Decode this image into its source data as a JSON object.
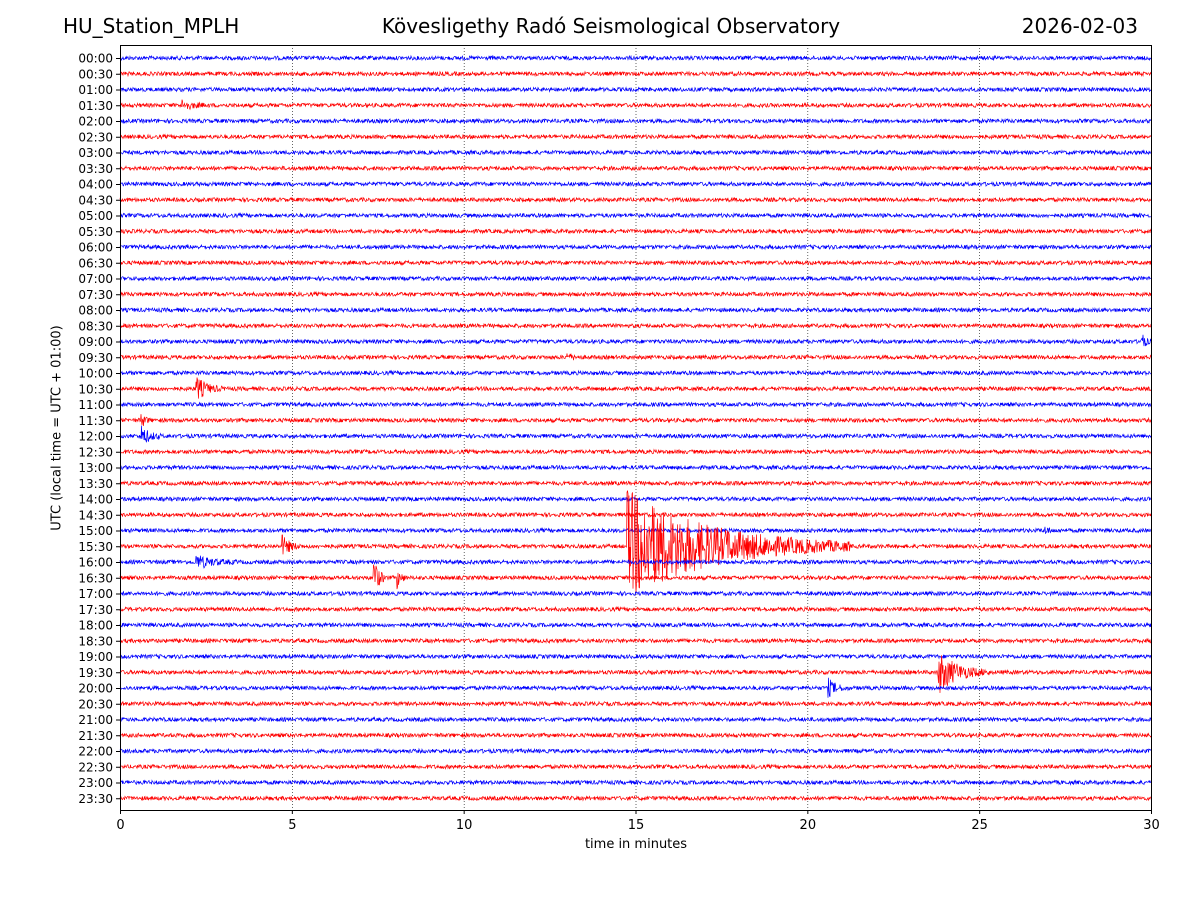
{
  "header": {
    "station": "HU_Station_MPLH",
    "observatory": "Kövesligethy Radó Seismological Observatory",
    "date": "2026-02-03"
  },
  "chart_data": {
    "type": "line",
    "title": "Kövesligethy Radó Seismological Observatory",
    "xlabel": "time in minutes",
    "ylabel": "UTC (local time = UTC + 01:00)",
    "xlim": [
      0,
      30
    ],
    "xticks": [
      0,
      5,
      10,
      15,
      20,
      25,
      30
    ],
    "grid": "vertical dotted at 5-minute intervals",
    "trace_colors": [
      "#0000ff",
      "#ff0000"
    ],
    "rows": [
      "00:00",
      "00:30",
      "01:00",
      "01:30",
      "02:00",
      "02:30",
      "03:00",
      "03:30",
      "04:00",
      "04:30",
      "05:00",
      "05:30",
      "06:00",
      "06:30",
      "07:00",
      "07:30",
      "08:00",
      "08:30",
      "09:00",
      "09:30",
      "10:00",
      "10:30",
      "11:00",
      "11:30",
      "12:00",
      "12:30",
      "13:00",
      "13:30",
      "14:00",
      "14:30",
      "15:00",
      "15:30",
      "16:00",
      "16:30",
      "17:00",
      "17:30",
      "18:00",
      "18:30",
      "19:00",
      "19:30",
      "20:00",
      "20:30",
      "21:00",
      "21:30",
      "22:00",
      "22:30",
      "23:00",
      "23:30"
    ],
    "events": [
      {
        "row": "01:30",
        "minute": 1.8,
        "amplitude": 0.7,
        "duration_min": 0.8
      },
      {
        "row": "09:00",
        "minute": 29.7,
        "amplitude": 1.5,
        "duration_min": 0.3
      },
      {
        "row": "09:30",
        "minute": 13.0,
        "amplitude": 0.5,
        "duration_min": 0.5
      },
      {
        "row": "10:30",
        "minute": 2.2,
        "amplitude": 1.8,
        "duration_min": 0.8
      },
      {
        "row": "11:30",
        "minute": 0.6,
        "amplitude": 1.3,
        "duration_min": 0.3
      },
      {
        "row": "12:00",
        "minute": 0.6,
        "amplitude": 1.6,
        "duration_min": 0.6
      },
      {
        "row": "15:00",
        "minute": 26.9,
        "amplitude": 0.6,
        "duration_min": 0.3
      },
      {
        "row": "15:30",
        "minute": 4.7,
        "amplitude": 1.6,
        "duration_min": 0.6
      },
      {
        "row": "15:30",
        "minute": 14.75,
        "amplitude": 8.0,
        "duration_min": 6.5
      },
      {
        "row": "16:00",
        "minute": 2.2,
        "amplitude": 1.0,
        "duration_min": 1.2
      },
      {
        "row": "16:30",
        "minute": 7.35,
        "amplitude": 3.5,
        "duration_min": 0.4
      },
      {
        "row": "16:30",
        "minute": 8.05,
        "amplitude": 1.6,
        "duration_min": 0.3
      },
      {
        "row": "19:30",
        "minute": 23.8,
        "amplitude": 3.0,
        "duration_min": 1.5
      },
      {
        "row": "20:00",
        "minute": 20.6,
        "amplitude": 1.3,
        "duration_min": 0.6
      }
    ]
  }
}
